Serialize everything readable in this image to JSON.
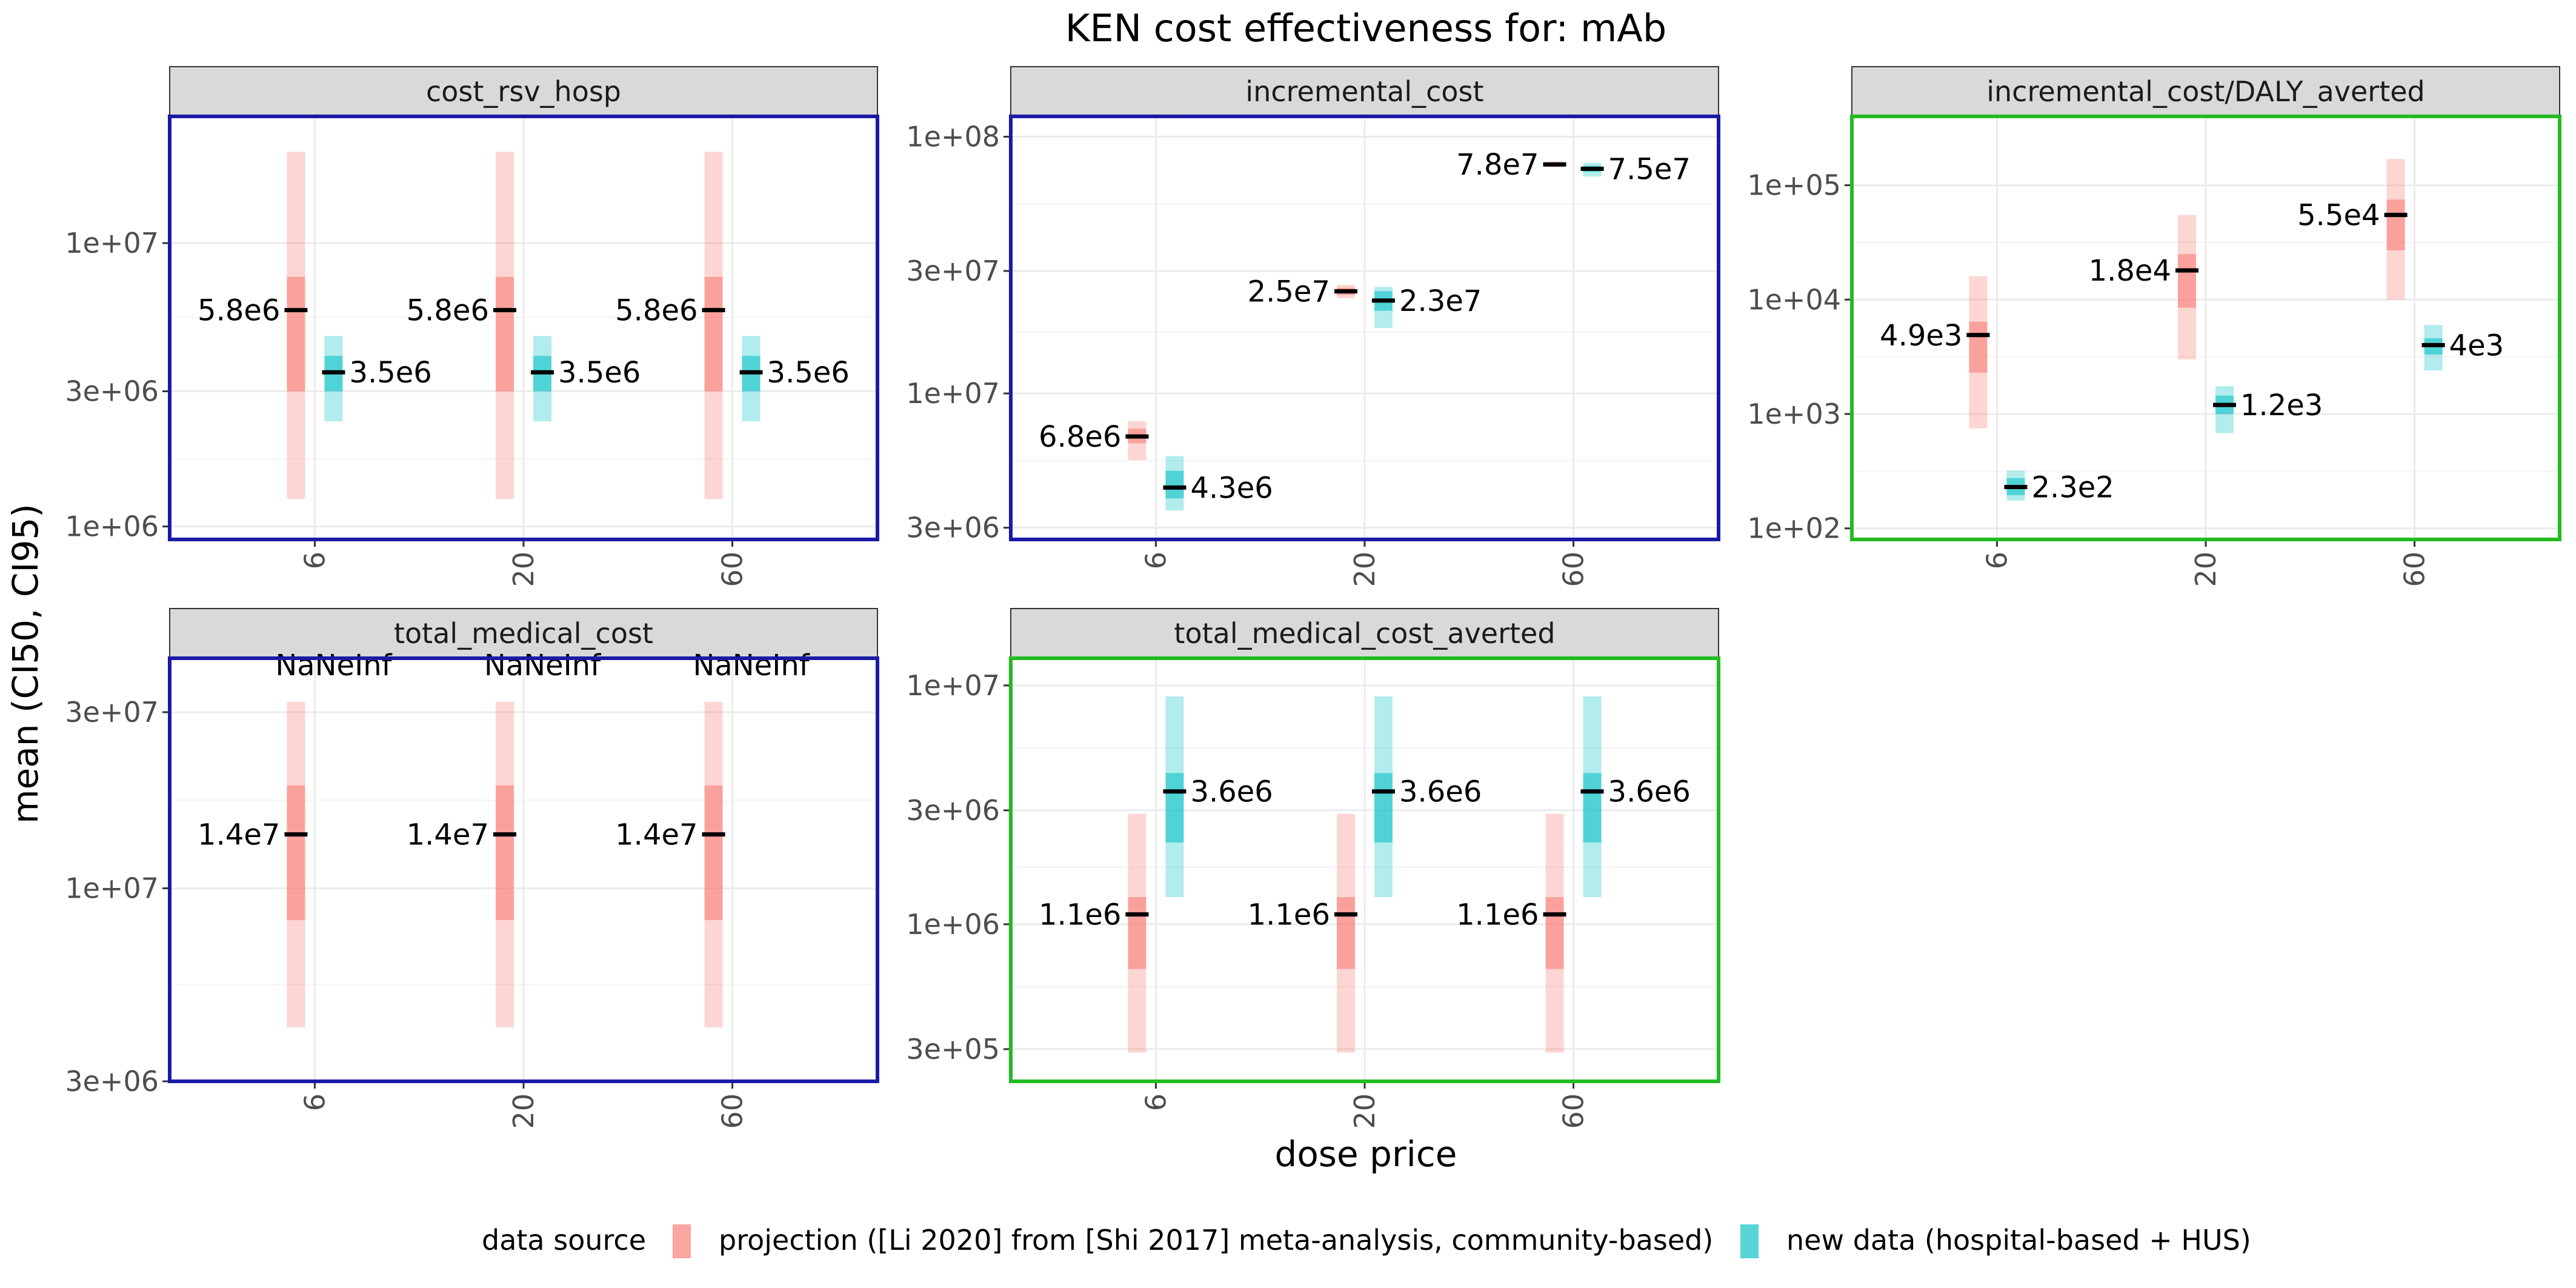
{
  "chart_data": {
    "type": "faceted-range",
    "title": "KEN cost effectiveness for: mAb",
    "xlabel": "dose price",
    "ylabel": "mean (CI50, CI95)",
    "y_scale": "log10",
    "x_categories": [
      "6",
      "20",
      "60"
    ],
    "legend": {
      "title": "data source",
      "position": "bottom",
      "entries": [
        {
          "key": "projection",
          "label": "projection ([Li 2020] from [Shi 2017] meta-analysis, community-based)",
          "color": "#F8766D"
        },
        {
          "key": "newdata",
          "label": "new data (hospital-based + HUS)",
          "color": "#00BFC4"
        }
      ]
    },
    "colors": {
      "strip_bg": "#d9d9d9",
      "border_blue": "#1a1aa6",
      "border_green": "#22bb22",
      "grid": "#ebebeb"
    },
    "panels": [
      {
        "name": "cost_rsv_hosp",
        "border": "blue",
        "ylim": [
          900000,
          28000000
        ],
        "yticks": [
          1000000,
          3000000,
          10000000
        ],
        "ytick_labels": [
          "1e+06",
          "3e+06",
          "1e+07"
        ],
        "series": {
          "projection": [
            {
              "x": "6",
              "mean": 5800000,
              "ci50": [
                3000000,
                7600000
              ],
              "ci95": [
                1250000,
                21000000
              ],
              "label": "5.8e6"
            },
            {
              "x": "20",
              "mean": 5800000,
              "ci50": [
                3000000,
                7600000
              ],
              "ci95": [
                1250000,
                21000000
              ],
              "label": "5.8e6"
            },
            {
              "x": "60",
              "mean": 5800000,
              "ci50": [
                3000000,
                7600000
              ],
              "ci95": [
                1250000,
                21000000
              ],
              "label": "5.8e6"
            }
          ],
          "newdata": [
            {
              "x": "6",
              "mean": 3500000,
              "ci50": [
                3000000,
                4000000
              ],
              "ci95": [
                2350000,
                4700000
              ],
              "label": "3.5e6"
            },
            {
              "x": "20",
              "mean": 3500000,
              "ci50": [
                3000000,
                4000000
              ],
              "ci95": [
                2350000,
                4700000
              ],
              "label": "3.5e6"
            },
            {
              "x": "60",
              "mean": 3500000,
              "ci50": [
                3000000,
                4000000
              ],
              "ci95": [
                2350000,
                4700000
              ],
              "label": "3.5e6"
            }
          ]
        }
      },
      {
        "name": "incremental_cost",
        "border": "blue",
        "ylim": [
          2700000,
          120000000
        ],
        "yticks": [
          3000000,
          10000000,
          30000000,
          100000000
        ],
        "ytick_labels": [
          "3e+06",
          "1e+07",
          "3e+07",
          "1e+08"
        ],
        "series": {
          "projection": [
            {
              "x": "6",
              "mean": 6800000,
              "ci50": [
                6400000,
                7300000
              ],
              "ci95": [
                5500000,
                7800000
              ],
              "label": "6.8e6"
            },
            {
              "x": "20",
              "mean": 25000000,
              "ci50": [
                24200000,
                25800000
              ],
              "ci95": [
                23500000,
                26500000
              ],
              "label": "2.5e7"
            },
            {
              "x": "60",
              "mean": 78000000,
              "ci50": [
                77000000,
                79000000
              ],
              "ci95": [
                76000000,
                80000000
              ],
              "label": "7.8e7"
            }
          ],
          "newdata": [
            {
              "x": "6",
              "mean": 4300000,
              "ci50": [
                3900000,
                5000000
              ],
              "ci95": [
                3500000,
                5700000
              ],
              "label": "4.3e6"
            },
            {
              "x": "20",
              "mean": 23000000,
              "ci50": [
                21000000,
                25000000
              ],
              "ci95": [
                18000000,
                26000000
              ],
              "label": "2.3e7"
            },
            {
              "x": "60",
              "mean": 75000000,
              "ci50": [
                73000000,
                77000000
              ],
              "ci95": [
                70000000,
                79000000
              ],
              "label": "7.5e7"
            }
          ]
        }
      },
      {
        "name": "incremental_cost/DALY_averted",
        "border": "green",
        "ylim": [
          80,
          400000
        ],
        "yticks": [
          100,
          1000,
          10000,
          100000
        ],
        "ytick_labels": [
          "1e+02",
          "1e+03",
          "1e+04",
          "1e+05"
        ],
        "series": {
          "projection": [
            {
              "x": "6",
              "mean": 4900,
              "ci50": [
                2300,
                6400
              ],
              "ci95": [
                750,
                16000
              ],
              "label": "4.9e3"
            },
            {
              "x": "20",
              "mean": 18000,
              "ci50": [
                8500,
                25000
              ],
              "ci95": [
                3000,
                55000
              ],
              "label": "1.8e4"
            },
            {
              "x": "60",
              "mean": 55000,
              "ci50": [
                27000,
                75000
              ],
              "ci95": [
                10000,
                170000
              ],
              "label": "5.5e4"
            }
          ],
          "newdata": [
            {
              "x": "6",
              "mean": 230,
              "ci50": [
                195,
                275
              ],
              "ci95": [
                175,
                320
              ],
              "label": "2.3e2"
            },
            {
              "x": "20",
              "mean": 1200,
              "ci50": [
                1000,
                1450
              ],
              "ci95": [
                680,
                1750
              ],
              "label": "1.2e3"
            },
            {
              "x": "60",
              "mean": 4000,
              "ci50": [
                3300,
                4600
              ],
              "ci95": [
                2400,
                6000
              ],
              "label": "4e3"
            }
          ]
        }
      },
      {
        "name": "total_medical_cost",
        "border": "blue",
        "ylim": [
          3000000,
          42000000
        ],
        "yticks": [
          3000000,
          10000000,
          30000000
        ],
        "ytick_labels": [
          "3e+06",
          "1e+07",
          "3e+07"
        ],
        "series": {
          "projection": [
            {
              "x": "6",
              "mean": 14000000,
              "ci50": [
                8200000,
                19000000
              ],
              "ci95": [
                4200000,
                32000000
              ],
              "label": "1.4e7"
            },
            {
              "x": "20",
              "mean": 14000000,
              "ci50": [
                8200000,
                19000000
              ],
              "ci95": [
                4200000,
                32000000
              ],
              "label": "1.4e7"
            },
            {
              "x": "60",
              "mean": 14000000,
              "ci50": [
                8200000,
                19000000
              ],
              "ci95": [
                4200000,
                32000000
              ],
              "label": "1.4e7"
            }
          ],
          "newdata": [
            {
              "x": "6",
              "label": "NaNeInf"
            },
            {
              "x": "20",
              "label": "NaNeInf"
            },
            {
              "x": "60",
              "label": "NaNeInf"
            }
          ]
        }
      },
      {
        "name": "total_medical_cost_averted",
        "border": "green",
        "ylim": [
          220000,
          13000000
        ],
        "yticks": [
          300000,
          1000000,
          3000000,
          10000000
        ],
        "ytick_labels": [
          "3e+05",
          "1e+06",
          "3e+06",
          "1e+07"
        ],
        "series": {
          "projection": [
            {
              "x": "6",
              "mean": 1100000,
              "ci50": [
                650000,
                1300000
              ],
              "ci95": [
                290000,
                2900000
              ],
              "label": "1.1e6"
            },
            {
              "x": "20",
              "mean": 1100000,
              "ci50": [
                650000,
                1300000
              ],
              "ci95": [
                290000,
                2900000
              ],
              "label": "1.1e6"
            },
            {
              "x": "60",
              "mean": 1100000,
              "ci50": [
                650000,
                1300000
              ],
              "ci95": [
                290000,
                2900000
              ],
              "label": "1.1e6"
            }
          ],
          "newdata": [
            {
              "x": "6",
              "mean": 3600000,
              "ci50": [
                2200000,
                4300000
              ],
              "ci95": [
                1300000,
                9000000
              ],
              "label": "3.6e6"
            },
            {
              "x": "20",
              "mean": 3600000,
              "ci50": [
                2200000,
                4300000
              ],
              "ci95": [
                1300000,
                9000000
              ],
              "label": "3.6e6"
            },
            {
              "x": "60",
              "mean": 3600000,
              "ci50": [
                2200000,
                4300000
              ],
              "ci95": [
                1300000,
                9000000
              ],
              "label": "3.6e6"
            }
          ]
        }
      }
    ]
  }
}
